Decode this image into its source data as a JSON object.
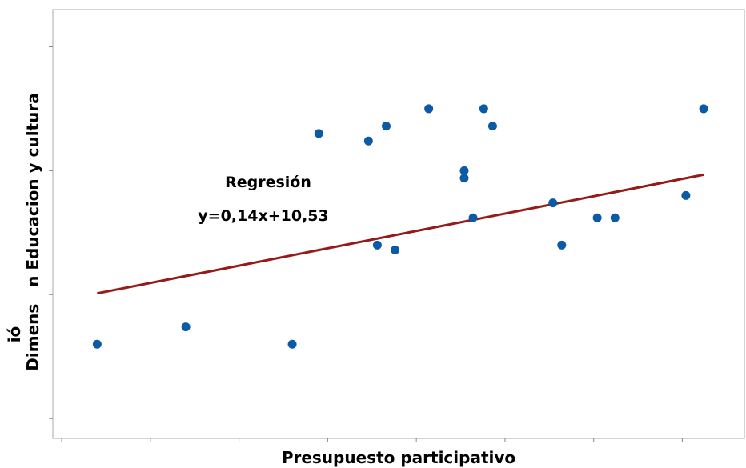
{
  "chart_data": {
    "type": "scatter",
    "xlabel": "Presupuesto participativo",
    "ylabel_line1": "ió",
    "ylabel_line2": "Dimens   n Educacion y cultura",
    "xlim": [
      65.5,
      104.5
    ],
    "ylim": [
      14.2,
      31.5
    ],
    "x_ticks": [
      66,
      71,
      76,
      81,
      86,
      91,
      96,
      101,
      106
    ],
    "y_ticks": [
      15,
      20,
      25,
      30
    ],
    "grid": false,
    "points": [
      {
        "x": 68,
        "y": 18
      },
      {
        "x": 73,
        "y": 18.7
      },
      {
        "x": 79,
        "y": 18
      },
      {
        "x": 80.5,
        "y": 26.5
      },
      {
        "x": 83.3,
        "y": 26.2
      },
      {
        "x": 83.8,
        "y": 22
      },
      {
        "x": 84.3,
        "y": 26.8
      },
      {
        "x": 84.8,
        "y": 21.8
      },
      {
        "x": 86.7,
        "y": 27.5
      },
      {
        "x": 88.7,
        "y": 24.7
      },
      {
        "x": 88.7,
        "y": 25
      },
      {
        "x": 89.2,
        "y": 23.1
      },
      {
        "x": 89.8,
        "y": 27.5
      },
      {
        "x": 90.3,
        "y": 26.8
      },
      {
        "x": 93.7,
        "y": 23.7
      },
      {
        "x": 94.2,
        "y": 22
      },
      {
        "x": 96.2,
        "y": 23.1
      },
      {
        "x": 97.2,
        "y": 23.1
      },
      {
        "x": 101.2,
        "y": 24
      },
      {
        "x": 102.2,
        "y": 27.5
      }
    ],
    "regression": {
      "label": "Regresión",
      "equation": "y=0,14x+10,53",
      "slope": 0.14,
      "intercept": 10.53,
      "x_range": [
        68,
        102.2
      ],
      "color": "#951b1b"
    },
    "point_color": "#0b5aa6"
  }
}
